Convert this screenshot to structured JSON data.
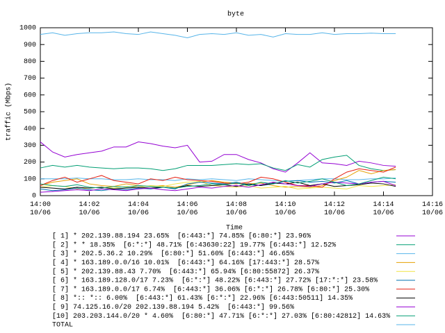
{
  "chart_data": {
    "type": "line",
    "title": "byte",
    "xlabel": "Time",
    "ylabel": "traffic (Mbps)",
    "x": [
      0,
      0.5,
      1,
      1.5,
      2,
      2.5,
      3,
      3.5,
      4,
      4.5,
      5,
      5.5,
      6,
      6.5,
      7,
      7.5,
      8,
      8.5,
      9,
      9.5,
      10,
      10.5,
      11,
      11.5,
      12,
      12.5,
      13,
      13.5,
      14,
      14.5
    ],
    "xlim": [
      0,
      16
    ],
    "xticks": [
      {
        "value": 0,
        "label": "14:00\n10/06"
      },
      {
        "value": 2,
        "label": "14:02\n10/06"
      },
      {
        "value": 4,
        "label": "14:04\n10/06"
      },
      {
        "value": 6,
        "label": "14:06\n10/06"
      },
      {
        "value": 8,
        "label": "14:08\n10/06"
      },
      {
        "value": 10,
        "label": "14:10\n10/06"
      },
      {
        "value": 12,
        "label": "14:12\n10/06"
      },
      {
        "value": 14,
        "label": "14:14\n10/06"
      },
      {
        "value": 16,
        "label": "14:16\n10/06"
      }
    ],
    "ylim": [
      0,
      1000
    ],
    "yticks": [
      0,
      100,
      200,
      300,
      400,
      500,
      600,
      700,
      800,
      900,
      1000
    ],
    "grid": false,
    "series": [
      {
        "name": "[ 1] * 202.139.88.194 23.65%  [6:443:*] 74.85% [6:80:*] 23.96%",
        "color": "#9400d3",
        "values": [
          320,
          260,
          230,
          245,
          255,
          265,
          290,
          290,
          320,
          310,
          295,
          285,
          300,
          200,
          205,
          245,
          245,
          215,
          195,
          160,
          140,
          195,
          255,
          195,
          190,
          180,
          205,
          195,
          180,
          175
        ]
      },
      {
        "name": "[ 2] * * 18.35%  [6:*:*] 48.71% [6:43630:22] 19.77% [6:443:*] 12.52%",
        "color": "#009e73",
        "values": [
          165,
          180,
          170,
          180,
          170,
          165,
          160,
          165,
          165,
          160,
          150,
          160,
          180,
          180,
          180,
          185,
          190,
          185,
          190,
          165,
          150,
          185,
          170,
          215,
          230,
          240,
          180,
          160,
          150,
          155
        ]
      },
      {
        "name": "[ 3] * 202.5.36.2 10.29%  [6:80:*] 51.60% [6:443:*] 46.65%",
        "color": "#56b4e9",
        "values": [
          100,
          100,
          100,
          105,
          100,
          100,
          95,
          95,
          100,
          95,
          95,
          90,
          100,
          95,
          100,
          95,
          90,
          100,
          95,
          90,
          85,
          90,
          95,
          100,
          100,
          95,
          95,
          100,
          100,
          105
        ]
      },
      {
        "name": "[ 4] * 163.189.0.0/16 10.01%  [6:443:*] 64.16% [17:443:*] 28.57%",
        "color": "#e69f00",
        "values": [
          60,
          80,
          90,
          100,
          70,
          60,
          55,
          70,
          60,
          55,
          60,
          50,
          65,
          80,
          90,
          80,
          75,
          70,
          75,
          60,
          50,
          55,
          50,
          60,
          90,
          110,
          150,
          130,
          150,
          155
        ]
      },
      {
        "name": "[ 5] * 202.139.88.43 7.70%  [6:443:*] 65.94% [6:80:55872] 26.37%",
        "color": "#f0e442",
        "values": [
          50,
          60,
          55,
          40,
          45,
          50,
          45,
          55,
          50,
          60,
          55,
          70,
          80,
          85,
          60,
          55,
          50,
          60,
          45,
          50,
          55,
          40,
          45,
          50,
          45,
          40,
          60,
          55,
          60,
          65
        ]
      },
      {
        "name": "[ 6] * 163.189.128.0/17 7.23%  [6:*:*] 48.22% [6:443:*] 27.72% [17:*:*] 23.58%",
        "color": "#0072b2",
        "values": [
          40,
          30,
          35,
          45,
          35,
          30,
          40,
          35,
          45,
          40,
          50,
          40,
          70,
          80,
          75,
          70,
          80,
          65,
          60,
          70,
          85,
          90,
          80,
          85,
          75,
          90,
          70,
          80,
          85,
          80
        ]
      },
      {
        "name": "[ 7] * 163.189.0.0/17 6.74%  [6:443:*] 36.06% [6:*:*] 26.78% [6:80:*] 25.30%",
        "color": "#e51e10",
        "values": [
          60,
          90,
          110,
          80,
          100,
          120,
          90,
          80,
          70,
          100,
          90,
          110,
          95,
          90,
          85,
          75,
          70,
          80,
          110,
          100,
          80,
          60,
          60,
          50,
          100,
          140,
          160,
          150,
          140,
          170
        ]
      },
      {
        "name": "[ 8] *:: *:: 6.00%  [6:443:*] 61.43% [6:*:*] 22.96% [6:443:50511] 14.35%",
        "color": "#000000",
        "values": [
          50,
          45,
          40,
          50,
          45,
          50,
          40,
          45,
          50,
          45,
          50,
          45,
          60,
          55,
          60,
          65,
          55,
          70,
          60,
          75,
          70,
          80,
          60,
          70,
          55,
          60,
          65,
          75,
          70,
          55
        ]
      },
      {
        "name": "[ 9] 74.125.16.0/20 202.139.88.194 5.42%  [6:443:*] 99.56%",
        "color": "#9400d3",
        "values": [
          20,
          25,
          30,
          35,
          30,
          40,
          35,
          30,
          40,
          45,
          35,
          30,
          40,
          50,
          45,
          55,
          60,
          50,
          65,
          80,
          70,
          60,
          55,
          70,
          80,
          75,
          70,
          80,
          85,
          60
        ]
      },
      {
        "name": "[10] 203.203.144.0/20 * 4.60%  [6:80:*] 47.71% [6:*:*] 27.03% [6:80:42812] 14.63%",
        "color": "#009e73",
        "values": [
          70,
          60,
          55,
          65,
          50,
          45,
          55,
          50,
          60,
          55,
          50,
          45,
          55,
          60,
          70,
          65,
          75,
          60,
          80,
          70,
          90,
          75,
          85,
          100,
          80,
          60,
          70,
          90,
          110,
          100
        ]
      },
      {
        "name": "TOTAL",
        "color": "#56b4e9",
        "values": [
          960,
          970,
          955,
          965,
          970,
          970,
          975,
          965,
          960,
          975,
          965,
          955,
          940,
          960,
          965,
          960,
          970,
          955,
          960,
          945,
          965,
          960,
          960,
          970,
          960,
          965,
          965,
          968,
          965,
          965
        ]
      }
    ]
  }
}
